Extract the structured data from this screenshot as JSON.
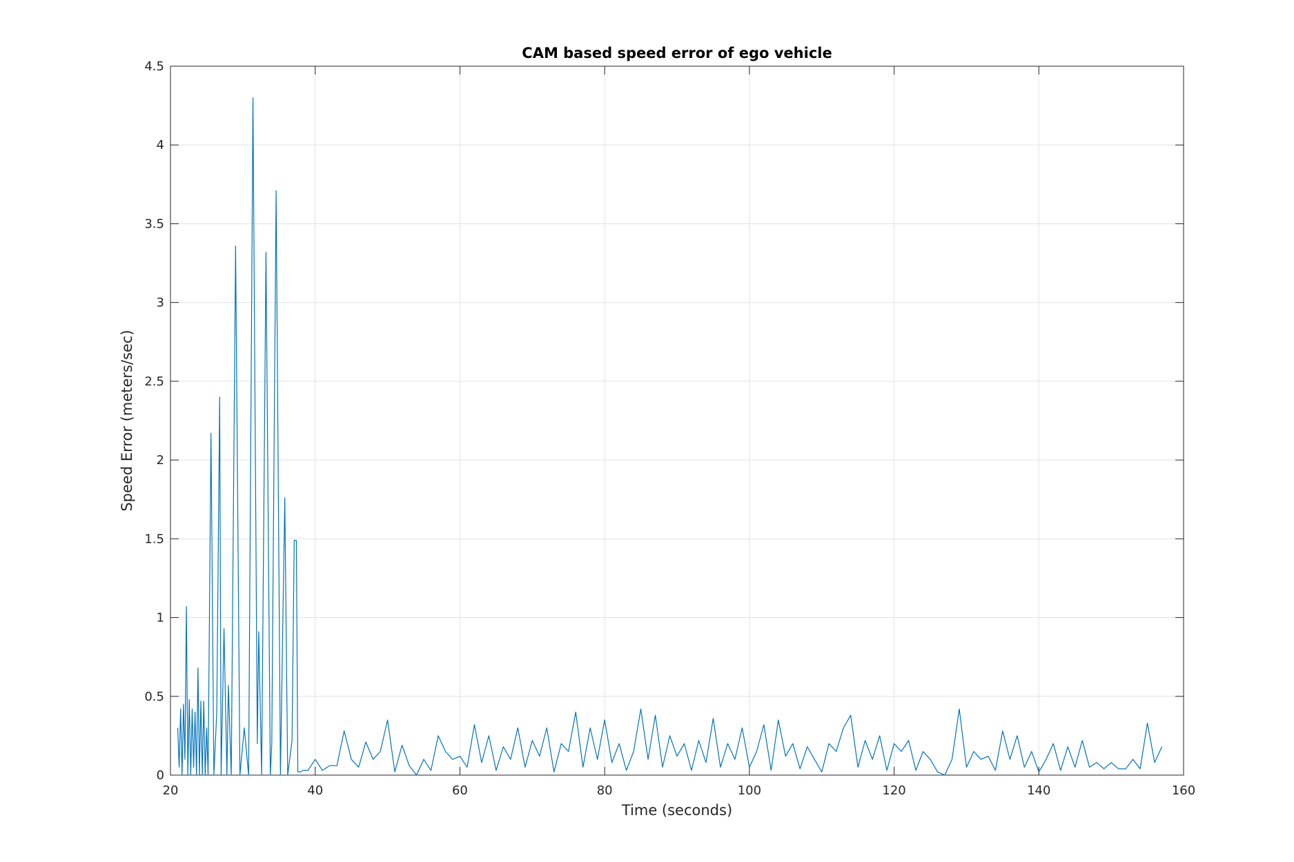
{
  "chart_data": {
    "type": "line",
    "title": "CAM based speed error of ego vehicle",
    "xlabel": "Time (seconds)",
    "ylabel": "Speed Error (meters/sec)",
    "color": "#0072bd",
    "grid": true,
    "xlim": [
      20,
      160
    ],
    "ylim": [
      0,
      4.5
    ],
    "xticks": [
      20,
      40,
      60,
      80,
      100,
      120,
      140,
      160
    ],
    "yticks": [
      0,
      0.5,
      1,
      1.5,
      2,
      2.5,
      3,
      3.5,
      4,
      4.5
    ],
    "x": [
      21,
      21.2,
      21.4,
      21.6,
      21.8,
      22.0,
      22.2,
      22.4,
      22.6,
      22.8,
      23.0,
      23.2,
      23.4,
      23.6,
      23.8,
      24.0,
      24.2,
      24.4,
      24.6,
      24.8,
      25.0,
      25.2,
      25.6,
      26.0,
      26.4,
      26.8,
      27.0,
      27.4,
      27.8,
      28.0,
      28.4,
      29.0,
      29.6,
      30.2,
      30.8,
      31.4,
      32.0,
      32.2,
      32.6,
      33.2,
      33.8,
      34.0,
      34.6,
      35.2,
      35.8,
      36.2,
      36.8,
      37.1,
      37.4,
      37.6,
      38.0,
      38.3,
      38.5,
      39,
      40,
      41,
      42,
      43,
      44,
      45,
      46,
      47,
      48,
      49,
      50,
      51,
      52,
      53,
      54,
      55,
      56,
      57,
      58,
      59,
      60,
      61,
      62,
      63,
      64,
      65,
      66,
      67,
      68,
      69,
      70,
      71,
      72,
      73,
      74,
      75,
      76,
      77,
      78,
      79,
      80,
      81,
      82,
      83,
      84,
      85,
      86,
      87,
      88,
      89,
      90,
      91,
      92,
      93,
      94,
      95,
      96,
      97,
      98,
      99,
      100,
      101,
      102,
      103,
      104,
      105,
      106,
      107,
      108,
      109,
      110,
      111,
      112,
      113,
      114,
      115,
      116,
      117,
      118,
      119,
      120,
      121,
      122,
      123,
      124,
      125,
      126,
      127,
      128,
      129,
      130,
      131,
      132,
      133,
      134,
      135,
      136,
      137,
      138,
      139,
      140,
      141,
      142,
      143,
      144,
      145,
      146,
      147,
      148,
      149,
      150,
      151,
      152,
      153,
      154,
      155,
      156,
      157
    ],
    "values": [
      0.3,
      0.05,
      0.42,
      0,
      0.45,
      0.1,
      1.07,
      0,
      0.48,
      0,
      0.42,
      0.05,
      0.4,
      0,
      0.68,
      0,
      0.47,
      0,
      0.47,
      0,
      0.3,
      0,
      2.17,
      0,
      0.4,
      2.4,
      0,
      0.93,
      0,
      0.57,
      0,
      3.36,
      0,
      0.3,
      0,
      4.3,
      0.2,
      0.91,
      0,
      3.32,
      0,
      0.2,
      3.71,
      0,
      1.76,
      0,
      0.22,
      1.49,
      1.49,
      0.02,
      0.02,
      0.03,
      0.03,
      0.03,
      0.1,
      0.03,
      0.06,
      0.06,
      0.28,
      0.1,
      0.05,
      0.21,
      0.1,
      0.15,
      0.35,
      0.02,
      0.19,
      0.06,
      0,
      0.1,
      0.03,
      0.25,
      0.15,
      0.1,
      0.12,
      0.05,
      0.32,
      0.08,
      0.25,
      0.03,
      0.18,
      0.1,
      0.3,
      0.05,
      0.22,
      0.12,
      0.3,
      0.02,
      0.2,
      0.15,
      0.4,
      0.05,
      0.3,
      0.1,
      0.35,
      0.08,
      0.2,
      0.03,
      0.15,
      0.42,
      0.1,
      0.38,
      0.05,
      0.25,
      0.12,
      0.2,
      0.03,
      0.22,
      0.08,
      0.36,
      0.05,
      0.2,
      0.1,
      0.3,
      0.05,
      0.15,
      0.32,
      0.03,
      0.35,
      0.12,
      0.2,
      0.04,
      0.18,
      0.1,
      0.02,
      0.2,
      0.15,
      0.3,
      0.38,
      0.05,
      0.22,
      0.1,
      0.25,
      0.03,
      0.2,
      0.15,
      0.22,
      0.03,
      0.15,
      0.1,
      0.02,
      0,
      0.1,
      0.42,
      0.05,
      0.15,
      0.1,
      0.12,
      0.03,
      0.28,
      0.1,
      0.25,
      0.05,
      0.15,
      0.02,
      0.1,
      0.2,
      0.03,
      0.18,
      0.05,
      0.22,
      0.05,
      0.08,
      0.04,
      0.08,
      0.04,
      0.04,
      0.1,
      0.04,
      0.33,
      0.08,
      0.18
    ]
  }
}
